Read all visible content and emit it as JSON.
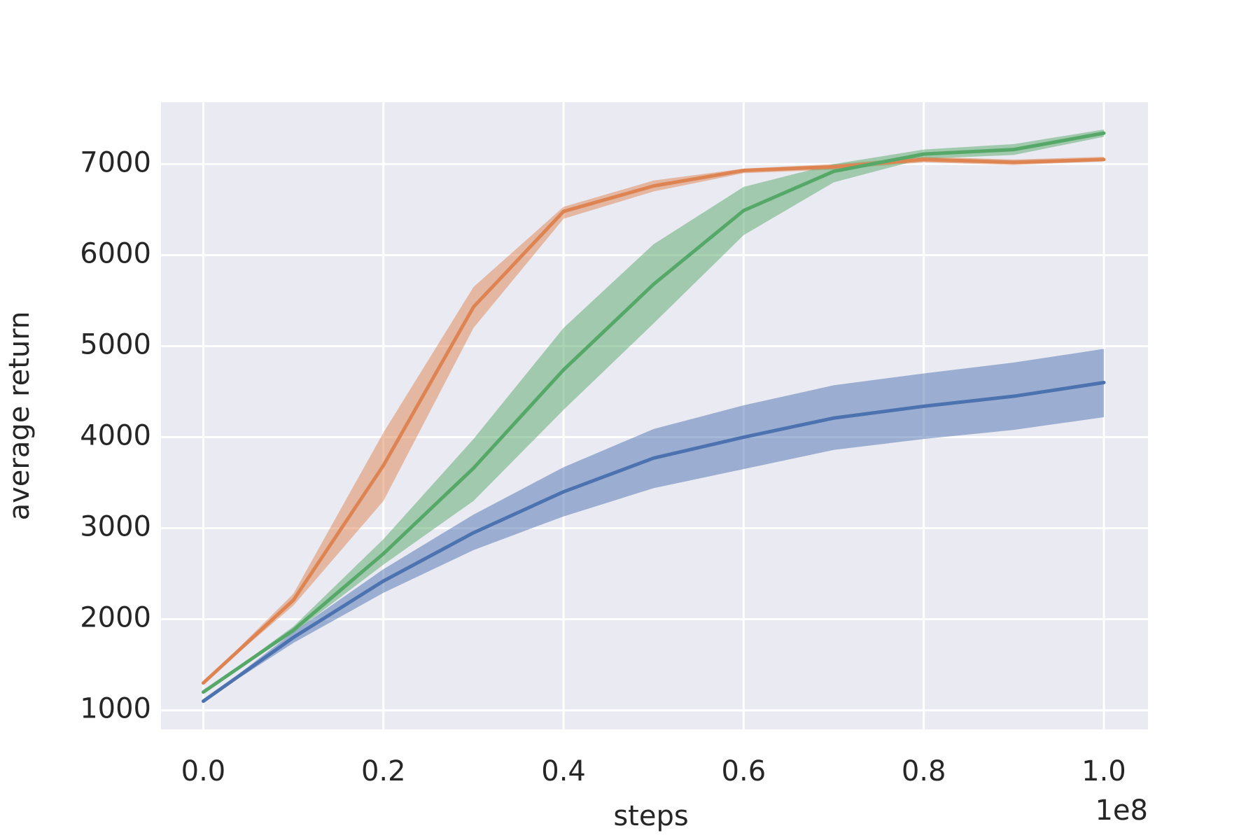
{
  "chart_data": {
    "type": "line",
    "xlabel": "steps",
    "ylabel": "average return",
    "x_offset_label": "1e8",
    "x": [
      0,
      10000000,
      20000000,
      30000000,
      40000000,
      50000000,
      60000000,
      70000000,
      80000000,
      90000000,
      100000000
    ],
    "series": [
      {
        "color": "#4c72b0",
        "values": [
          1100,
          1800,
          2420,
          2950,
          3400,
          3770,
          4000,
          4210,
          4340,
          4450,
          4600
        ],
        "lower": [
          1100,
          1740,
          2290,
          2760,
          3130,
          3440,
          3650,
          3860,
          3980,
          4080,
          4220
        ],
        "upper": [
          1100,
          1860,
          2550,
          3150,
          3670,
          4090,
          4350,
          4570,
          4700,
          4820,
          4970
        ]
      },
      {
        "color": "#dd8452",
        "values": [
          1300,
          2210,
          3690,
          5430,
          6480,
          6760,
          6930,
          6970,
          7050,
          7020,
          7050
        ],
        "lower": [
          1300,
          2150,
          3300,
          5200,
          6400,
          6700,
          6900,
          6940,
          7020,
          6990,
          7030
        ],
        "upper": [
          1300,
          2280,
          4050,
          5650,
          6530,
          6820,
          6950,
          7000,
          7080,
          7050,
          7080
        ]
      },
      {
        "color": "#55a868",
        "values": [
          1200,
          1880,
          2720,
          3660,
          4740,
          5680,
          6490,
          6920,
          7110,
          7160,
          7340
        ],
        "lower": [
          1200,
          1850,
          2600,
          3300,
          4300,
          5250,
          6220,
          6800,
          7060,
          7100,
          7300
        ],
        "upper": [
          1200,
          1920,
          2880,
          3980,
          5200,
          6120,
          6750,
          7000,
          7160,
          7220,
          7380
        ]
      }
    ],
    "xlim": [
      -4700000,
      104900000
    ],
    "xticks": [
      {
        "value": 0,
        "label": "0.0"
      },
      {
        "value": 20000000,
        "label": "0.2"
      },
      {
        "value": 40000000,
        "label": "0.4"
      },
      {
        "value": 60000000,
        "label": "0.6"
      },
      {
        "value": 80000000,
        "label": "0.8"
      },
      {
        "value": 100000000,
        "label": "1.0"
      }
    ],
    "ylim": [
      790,
      7680
    ],
    "yticks": [
      1000,
      2000,
      3000,
      4000,
      5000,
      6000,
      7000
    ],
    "grid": true,
    "background": "#eaeaf2",
    "band_opacity": 0.5
  }
}
